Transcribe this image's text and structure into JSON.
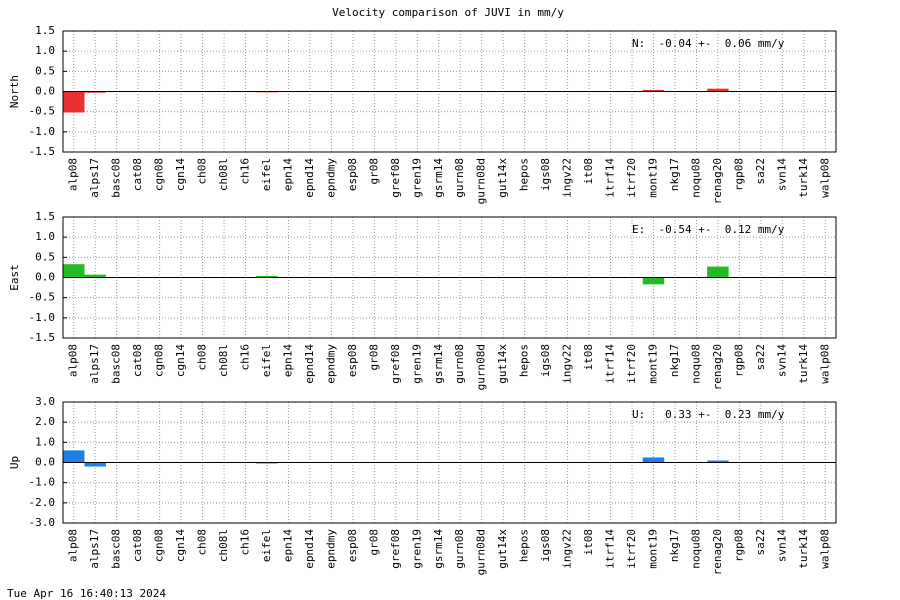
{
  "title": "Velocity comparison of JUVI in mm/y",
  "footer": "Tue Apr 16 16:40:13 2024",
  "chart_data": [
    {
      "type": "bar",
      "ylabel": "North",
      "annotation": "N:  -0.04 +-  0.06 mm/y",
      "categories": [
        "alp08",
        "alps17",
        "basc08",
        "cat08",
        "cgn08",
        "cgn14",
        "ch08",
        "ch08l",
        "ch16",
        "eifel",
        "epn14",
        "epnd14",
        "epndmy",
        "esp08",
        "gr08",
        "gref08",
        "gren19",
        "gsrm14",
        "gurn08",
        "gurn08d",
        "gut14x",
        "hepos",
        "igs08",
        "ingv22",
        "it08",
        "itrf14",
        "itrf20",
        "mont19",
        "nkg17",
        "noqu08",
        "renag20",
        "rgp08",
        "sa22",
        "svn14",
        "turk14",
        "walp08"
      ],
      "values": [
        -0.52,
        -0.03,
        0,
        0,
        0,
        0,
        0,
        0,
        0,
        -0.02,
        0,
        0,
        0,
        0,
        0,
        0,
        0,
        0,
        0,
        0,
        0,
        0,
        0,
        0,
        0,
        0,
        0,
        0.04,
        0,
        0,
        0.07,
        0,
        0,
        0,
        0,
        0
      ],
      "color": "#e83030",
      "ylim": [
        -1.5,
        1.5
      ],
      "yticks": [
        -1.5,
        {
          "value": -1,
          "label": "-1.0"
        },
        -0.5,
        {
          "value": 0,
          "label": "0.0"
        },
        0.5,
        {
          "value": 1,
          "label": "1.0"
        },
        1.5
      ],
      "grid": true
    },
    {
      "type": "bar",
      "ylabel": "East",
      "annotation": "E:  -0.54 +-  0.12 mm/y",
      "categories": [
        "alp08",
        "alps17",
        "basc08",
        "cat08",
        "cgn08",
        "cgn14",
        "ch08",
        "ch08l",
        "ch16",
        "eifel",
        "epn14",
        "epnd14",
        "epndmy",
        "esp08",
        "gr08",
        "gref08",
        "gren19",
        "gsrm14",
        "gurn08",
        "gurn08d",
        "gut14x",
        "hepos",
        "igs08",
        "ingv22",
        "it08",
        "itrf14",
        "itrf20",
        "mont19",
        "nkg17",
        "noqu08",
        "renag20",
        "rgp08",
        "sa22",
        "svn14",
        "turk14",
        "walp08"
      ],
      "values": [
        0.33,
        0.07,
        0,
        0,
        0,
        0,
        0,
        0,
        0,
        0.04,
        0,
        0,
        0,
        0,
        0,
        0,
        0,
        0,
        0,
        0,
        0,
        0,
        0,
        0,
        0,
        0,
        0,
        -0.17,
        0,
        0,
        0.27,
        0,
        0,
        0,
        0,
        0
      ],
      "color": "#22bb22",
      "ylim": [
        -1.5,
        1.5
      ],
      "yticks": [
        -1.5,
        {
          "value": -1,
          "label": "-1.0"
        },
        -0.5,
        {
          "value": 0,
          "label": "0.0"
        },
        0.5,
        {
          "value": 1,
          "label": "1.0"
        },
        1.5
      ],
      "grid": true
    },
    {
      "type": "bar",
      "ylabel": "Up",
      "annotation": "U:   0.33 +-  0.23 mm/y",
      "categories": [
        "alp08",
        "alps17",
        "basc08",
        "cat08",
        "cgn08",
        "cgn14",
        "ch08",
        "ch08l",
        "ch16",
        "eifel",
        "epn14",
        "epnd14",
        "epndmy",
        "esp08",
        "gr08",
        "gref08",
        "gren19",
        "gsrm14",
        "gurn08",
        "gurn08d",
        "gut14x",
        "hepos",
        "igs08",
        "ingv22",
        "it08",
        "itrf14",
        "itrf20",
        "mont19",
        "nkg17",
        "noqu08",
        "renag20",
        "rgp08",
        "sa22",
        "svn14",
        "turk14",
        "walp08"
      ],
      "values": [
        0.6,
        -0.2,
        0,
        0,
        0,
        0,
        0,
        0,
        0,
        -0.05,
        0,
        0,
        0,
        0,
        0,
        0,
        0,
        0,
        0,
        0,
        0,
        0,
        0,
        0,
        0,
        0,
        0,
        0.25,
        0,
        0,
        0.1,
        0,
        0,
        0,
        0,
        0
      ],
      "color": "#1e7fe8",
      "ylim": [
        -3,
        3
      ],
      "yticks": [
        {
          "value": -3,
          "label": "-3.0"
        },
        {
          "value": -2,
          "label": "-2.0"
        },
        {
          "value": -1,
          "label": "-1.0"
        },
        {
          "value": 0,
          "label": "0.0"
        },
        {
          "value": 1,
          "label": "1.0"
        },
        {
          "value": 2,
          "label": "2.0"
        },
        {
          "value": 3,
          "label": "3.0"
        }
      ],
      "grid": true
    }
  ]
}
